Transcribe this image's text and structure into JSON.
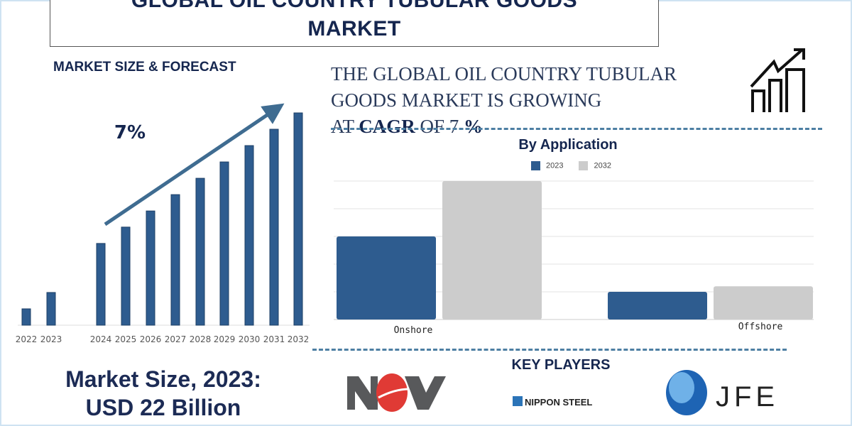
{
  "header": {
    "title_line1": "GLOBAL OIL COUNTRY TUBULAR GOODS",
    "title_line2": "MARKET"
  },
  "forecast": {
    "heading": "MARKET SIZE & FORECAST",
    "cagr_label": "7%"
  },
  "headline": {
    "line1": "THE GLOBAL OIL COUNTRY TUBULAR",
    "line2": "GOODS MARKET IS GROWING",
    "line3_prefix": "AT ",
    "line3_bold": "CAGR",
    "line3_mid": " OF 7 ",
    "line3_pct": "%"
  },
  "market_size": {
    "line1": "Market Size, 2023:",
    "line2": "USD 22 Billion"
  },
  "key_players": {
    "heading": "KEY PLAYERS",
    "players": [
      "NOV",
      "NIPPON STEEL",
      "JFE"
    ]
  },
  "icons": [
    "growth-chart-icon",
    "trend-arrow-icon"
  ],
  "colors": {
    "navy": "#15264f",
    "bar": "#2e5c8f",
    "series_2023": "#2e5c8f",
    "series_2032": "#cccccc"
  },
  "chart_data": [
    {
      "type": "bar",
      "title": "",
      "categories": [
        "2022",
        "2023",
        "2024",
        "2025",
        "2026",
        "2027",
        "2028",
        "2029",
        "2030",
        "2031",
        "2032"
      ],
      "values": [
        7.7,
        15.4,
        38.5,
        46.2,
        53.8,
        61.5,
        69.2,
        76.9,
        84.6,
        92.3,
        100
      ],
      "axis_values_shown": false,
      "grid": false,
      "annotation": "7%"
    },
    {
      "type": "bar",
      "title": "By Application",
      "categories": [
        "Onshore",
        "Offshore"
      ],
      "series": [
        {
          "name": "2023",
          "values": [
            3.0,
            1.0
          ]
        },
        {
          "name": "2032",
          "values": [
            5.0,
            1.2
          ]
        }
      ],
      "ylim": [
        0,
        5
      ],
      "axis_values_shown": false,
      "grid": true,
      "legend": "top"
    }
  ]
}
